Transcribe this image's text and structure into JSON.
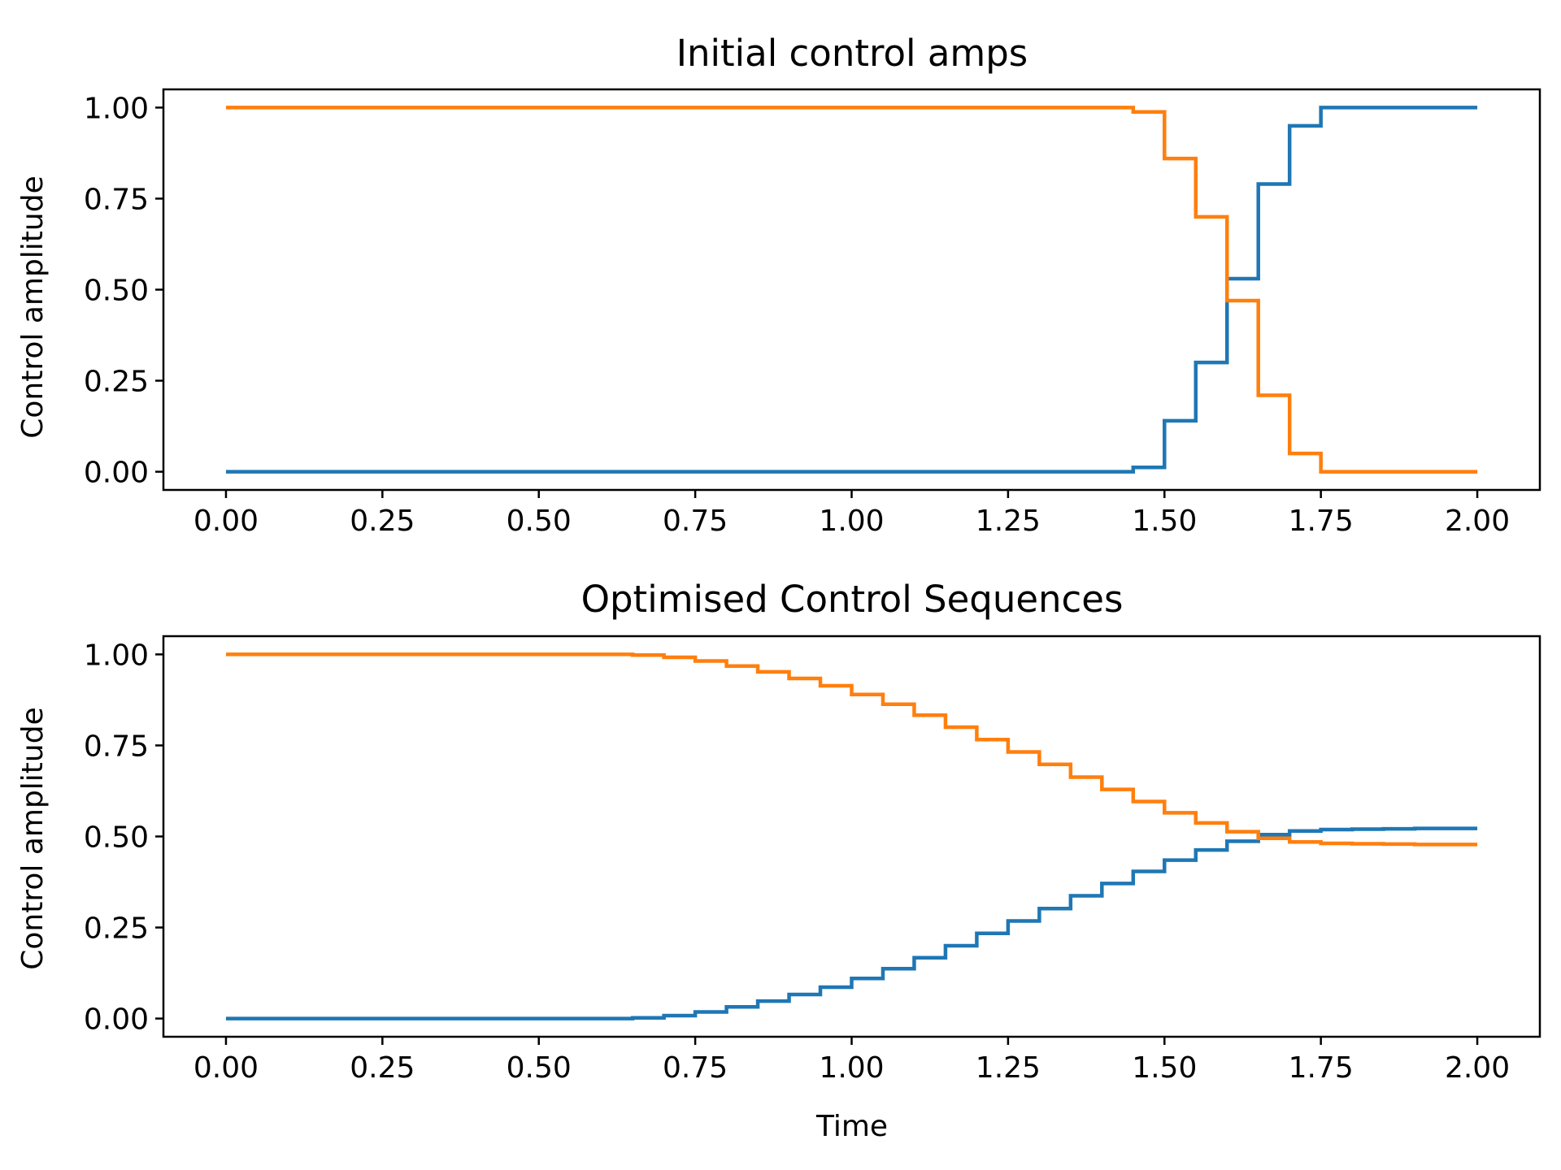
{
  "chart_data": [
    {
      "type": "line",
      "step": "post",
      "title": "Initial control amps",
      "xlabel": "",
      "ylabel": "Control amplitude",
      "xlim": [
        -0.1,
        2.1
      ],
      "ylim": [
        -0.05,
        1.05
      ],
      "xticks": [
        "0.00",
        "0.25",
        "0.50",
        "0.75",
        "1.00",
        "1.25",
        "1.50",
        "1.75",
        "2.00"
      ],
      "yticks": [
        "0.00",
        "0.25",
        "0.50",
        "0.75",
        "1.00"
      ],
      "grid": false,
      "x": [
        0.0,
        0.05,
        0.1,
        0.15,
        0.2,
        0.25,
        0.3,
        0.35,
        0.4,
        0.45,
        0.5,
        0.55,
        0.6,
        0.65,
        0.7,
        0.75,
        0.8,
        0.85,
        0.9,
        0.95,
        1.0,
        1.05,
        1.1,
        1.15,
        1.2,
        1.25,
        1.3,
        1.35,
        1.4,
        1.45,
        1.5,
        1.55,
        1.6,
        1.65,
        1.7,
        1.75,
        1.8,
        1.85,
        1.9,
        1.95,
        2.0
      ],
      "series": [
        {
          "color": "#1f77b4",
          "values": [
            0,
            0,
            0,
            0,
            0,
            0,
            0,
            0,
            0,
            0,
            0,
            0,
            0,
            0,
            0,
            0,
            0,
            0,
            0,
            0,
            0,
            0,
            0,
            0,
            0,
            0,
            0,
            0,
            0,
            0.012,
            0.14,
            0.3,
            0.53,
            0.79,
            0.95,
            1.0,
            1.0,
            1.0,
            1.0,
            1.0,
            1.0
          ]
        },
        {
          "color": "#ff7f0e",
          "values": [
            1,
            1,
            1,
            1,
            1,
            1,
            1,
            1,
            1,
            1,
            1,
            1,
            1,
            1,
            1,
            1,
            1,
            1,
            1,
            1,
            1,
            1,
            1,
            1,
            1,
            1,
            1,
            1,
            1,
            0.988,
            0.86,
            0.7,
            0.47,
            0.21,
            0.05,
            0,
            0,
            0,
            0,
            0,
            0
          ]
        }
      ]
    },
    {
      "type": "line",
      "step": "post",
      "title": "Optimised Control Sequences",
      "xlabel": "Time",
      "ylabel": "Control amplitude",
      "xlim": [
        -0.1,
        2.1
      ],
      "ylim": [
        -0.05,
        1.05
      ],
      "xticks": [
        "0.00",
        "0.25",
        "0.50",
        "0.75",
        "1.00",
        "1.25",
        "1.50",
        "1.75",
        "2.00"
      ],
      "yticks": [
        "0.00",
        "0.25",
        "0.50",
        "0.75",
        "1.00"
      ],
      "grid": false,
      "x": [
        0.0,
        0.05,
        0.1,
        0.15,
        0.2,
        0.25,
        0.3,
        0.35,
        0.4,
        0.45,
        0.5,
        0.55,
        0.6,
        0.65,
        0.7,
        0.75,
        0.8,
        0.85,
        0.9,
        0.95,
        1.0,
        1.05,
        1.1,
        1.15,
        1.2,
        1.25,
        1.3,
        1.35,
        1.4,
        1.45,
        1.5,
        1.55,
        1.6,
        1.65,
        1.7,
        1.75,
        1.8,
        1.85,
        1.9,
        1.95,
        2.0
      ],
      "series": [
        {
          "color": "#1f77b4",
          "values": [
            0,
            0,
            0,
            0,
            0,
            0,
            0,
            0,
            0,
            0,
            0,
            0,
            0,
            0.002,
            0.008,
            0.018,
            0.032,
            0.048,
            0.066,
            0.086,
            0.11,
            0.137,
            0.167,
            0.2,
            0.234,
            0.268,
            0.302,
            0.337,
            0.371,
            0.404,
            0.435,
            0.463,
            0.487,
            0.505,
            0.515,
            0.519,
            0.52,
            0.521,
            0.522,
            0.522,
            0.522
          ]
        },
        {
          "color": "#ff7f0e",
          "values": [
            1,
            1,
            1,
            1,
            1,
            1,
            1,
            1,
            1,
            1,
            1,
            1,
            1,
            0.998,
            0.992,
            0.982,
            0.968,
            0.952,
            0.934,
            0.914,
            0.89,
            0.863,
            0.833,
            0.8,
            0.766,
            0.732,
            0.698,
            0.663,
            0.629,
            0.596,
            0.565,
            0.537,
            0.513,
            0.495,
            0.485,
            0.481,
            0.48,
            0.479,
            0.478,
            0.478,
            0.478
          ]
        }
      ]
    }
  ]
}
